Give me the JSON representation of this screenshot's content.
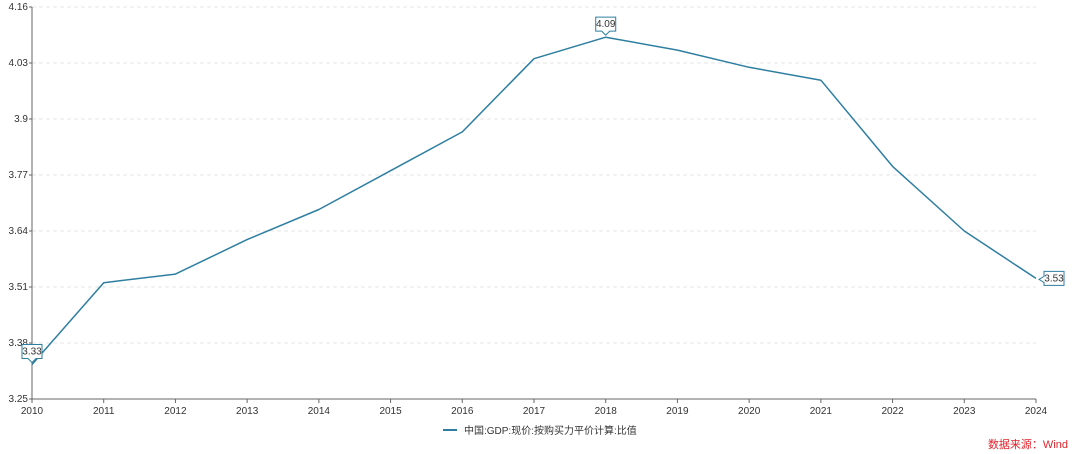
{
  "chart_data": {
    "type": "line",
    "x": [
      "2010",
      "2011",
      "2012",
      "2013",
      "2014",
      "2015",
      "2016",
      "2017",
      "2018",
      "2019",
      "2020",
      "2021",
      "2022",
      "2023",
      "2024"
    ],
    "series": [
      {
        "name": "中国:GDP:现价:按购买力平价计算:比值",
        "values": [
          3.33,
          3.52,
          3.54,
          3.62,
          3.69,
          3.78,
          3.87,
          4.04,
          4.09,
          4.06,
          4.02,
          3.99,
          3.79,
          3.64,
          3.53
        ]
      }
    ],
    "yticks": [
      "3.25",
      "3.38",
      "3.51",
      "3.64",
      "3.77",
      "3.9",
      "4.03",
      "4.16"
    ],
    "ylim": [
      3.25,
      4.16
    ],
    "grid": true,
    "legend_position": "bottom-center",
    "annotations": [
      {
        "x": "2010",
        "label": "3.33"
      },
      {
        "x": "2018",
        "label": "4.09"
      },
      {
        "x": "2024",
        "label": "3.53"
      }
    ],
    "line_color": "#2e7ea1"
  },
  "source_text": "数据来源：Wind"
}
